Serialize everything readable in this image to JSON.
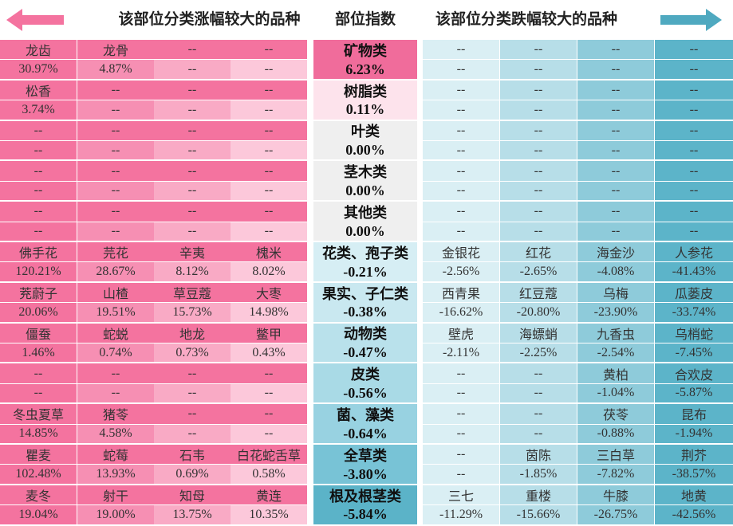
{
  "header": {
    "gainers_title": "该部位分类涨幅较大的品种",
    "index_title": "部位指数",
    "losers_title": "该部位分类跌幅较大的品种"
  },
  "rows": [
    {
      "category": "矿物类",
      "index": "6.23%",
      "gainers": [
        {
          "name": "龙齿",
          "value": "30.97%"
        },
        {
          "name": "龙骨",
          "value": "4.87%"
        },
        {
          "name": "--",
          "value": "--"
        },
        {
          "name": "--",
          "value": "--"
        }
      ],
      "losers": [
        {
          "name": "--",
          "value": "--"
        },
        {
          "name": "--",
          "value": "--"
        },
        {
          "name": "--",
          "value": "--"
        },
        {
          "name": "--",
          "value": "--"
        }
      ]
    },
    {
      "category": "树脂类",
      "index": "0.11%",
      "gainers": [
        {
          "name": "松香",
          "value": "3.74%"
        },
        {
          "name": "--",
          "value": "--"
        },
        {
          "name": "--",
          "value": "--"
        },
        {
          "name": "--",
          "value": "--"
        }
      ],
      "losers": [
        {
          "name": "--",
          "value": "--"
        },
        {
          "name": "--",
          "value": "--"
        },
        {
          "name": "--",
          "value": "--"
        },
        {
          "name": "--",
          "value": "--"
        }
      ]
    },
    {
      "category": "叶类",
      "index": "0.00%",
      "gainers": [
        {
          "name": "--",
          "value": "--"
        },
        {
          "name": "--",
          "value": "--"
        },
        {
          "name": "--",
          "value": "--"
        },
        {
          "name": "--",
          "value": "--"
        }
      ],
      "losers": [
        {
          "name": "--",
          "value": "--"
        },
        {
          "name": "--",
          "value": "--"
        },
        {
          "name": "--",
          "value": "--"
        },
        {
          "name": "--",
          "value": "--"
        }
      ]
    },
    {
      "category": "茎木类",
      "index": "0.00%",
      "gainers": [
        {
          "name": "--",
          "value": "--"
        },
        {
          "name": "--",
          "value": "--"
        },
        {
          "name": "--",
          "value": "--"
        },
        {
          "name": "--",
          "value": "--"
        }
      ],
      "losers": [
        {
          "name": "--",
          "value": "--"
        },
        {
          "name": "--",
          "value": "--"
        },
        {
          "name": "--",
          "value": "--"
        },
        {
          "name": "--",
          "value": "--"
        }
      ]
    },
    {
      "category": "其他类",
      "index": "0.00%",
      "gainers": [
        {
          "name": "--",
          "value": "--"
        },
        {
          "name": "--",
          "value": "--"
        },
        {
          "name": "--",
          "value": "--"
        },
        {
          "name": "--",
          "value": "--"
        }
      ],
      "losers": [
        {
          "name": "--",
          "value": "--"
        },
        {
          "name": "--",
          "value": "--"
        },
        {
          "name": "--",
          "value": "--"
        },
        {
          "name": "--",
          "value": "--"
        }
      ]
    },
    {
      "category": "花类、孢子类",
      "index": "-0.21%",
      "gainers": [
        {
          "name": "佛手花",
          "value": "120.21%"
        },
        {
          "name": "芫花",
          "value": "28.67%"
        },
        {
          "name": "辛夷",
          "value": "8.12%"
        },
        {
          "name": "槐米",
          "value": "8.02%"
        }
      ],
      "losers": [
        {
          "name": "金银花",
          "value": "-2.56%"
        },
        {
          "name": "红花",
          "value": "-2.65%"
        },
        {
          "name": "海金沙",
          "value": "-4.08%"
        },
        {
          "name": "人参花",
          "value": "-41.43%"
        }
      ]
    },
    {
      "category": "果实、子仁类",
      "index": "-0.38%",
      "gainers": [
        {
          "name": "茺蔚子",
          "value": "20.06%"
        },
        {
          "name": "山楂",
          "value": "19.51%"
        },
        {
          "name": "草豆蔻",
          "value": "15.73%"
        },
        {
          "name": "大枣",
          "value": "14.98%"
        }
      ],
      "losers": [
        {
          "name": "西青果",
          "value": "-16.62%"
        },
        {
          "name": "红豆蔻",
          "value": "-20.80%"
        },
        {
          "name": "乌梅",
          "value": "-23.90%"
        },
        {
          "name": "瓜蒌皮",
          "value": "-33.74%"
        }
      ]
    },
    {
      "category": "动物类",
      "index": "-0.47%",
      "gainers": [
        {
          "name": "僵蚕",
          "value": "1.46%"
        },
        {
          "name": "蛇蜕",
          "value": "0.74%"
        },
        {
          "name": "地龙",
          "value": "0.73%"
        },
        {
          "name": "鳖甲",
          "value": "0.43%"
        }
      ],
      "losers": [
        {
          "name": "壁虎",
          "value": "-2.11%"
        },
        {
          "name": "海螵蛸",
          "value": "-2.25%"
        },
        {
          "name": "九香虫",
          "value": "-2.54%"
        },
        {
          "name": "乌梢蛇",
          "value": "-7.45%"
        }
      ]
    },
    {
      "category": "皮类",
      "index": "-0.56%",
      "gainers": [
        {
          "name": "--",
          "value": "--"
        },
        {
          "name": "--",
          "value": "--"
        },
        {
          "name": "--",
          "value": "--"
        },
        {
          "name": "--",
          "value": "--"
        }
      ],
      "losers": [
        {
          "name": "--",
          "value": "--"
        },
        {
          "name": "--",
          "value": "--"
        },
        {
          "name": "黄柏",
          "value": "-1.04%"
        },
        {
          "name": "合欢皮",
          "value": "-5.87%"
        }
      ]
    },
    {
      "category": "菌、藻类",
      "index": "-0.64%",
      "gainers": [
        {
          "name": "冬虫夏草",
          "value": "14.85%"
        },
        {
          "name": "猪苓",
          "value": "4.58%"
        },
        {
          "name": "--",
          "value": "--"
        },
        {
          "name": "--",
          "value": "--"
        }
      ],
      "losers": [
        {
          "name": "--",
          "value": "--"
        },
        {
          "name": "--",
          "value": "--"
        },
        {
          "name": "茯苓",
          "value": "-0.88%"
        },
        {
          "name": "昆布",
          "value": "-1.94%"
        }
      ]
    },
    {
      "category": "全草类",
      "index": "-3.80%",
      "gainers": [
        {
          "name": "瞿麦",
          "value": "102.48%"
        },
        {
          "name": "蛇莓",
          "value": "13.93%"
        },
        {
          "name": "石韦",
          "value": "0.69%"
        },
        {
          "name": "白花蛇舌草",
          "value": "0.58%"
        }
      ],
      "losers": [
        {
          "name": "--",
          "value": "--"
        },
        {
          "name": "茵陈",
          "value": "-1.85%"
        },
        {
          "name": "三白草",
          "value": "-7.82%"
        },
        {
          "name": "荆芥",
          "value": "-38.57%"
        }
      ]
    },
    {
      "category": "根及根茎类",
      "index": "-5.84%",
      "gainers": [
        {
          "name": "麦冬",
          "value": "19.04%"
        },
        {
          "name": "射干",
          "value": "19.00%"
        },
        {
          "name": "知母",
          "value": "13.75%"
        },
        {
          "name": "黄连",
          "value": "10.35%"
        }
      ],
      "losers": [
        {
          "name": "三七",
          "value": "-11.29%"
        },
        {
          "name": "重楼",
          "value": "-15.66%"
        },
        {
          "name": "牛膝",
          "value": "-26.75%"
        },
        {
          "name": "地黄",
          "value": "-42.56%"
        }
      ]
    }
  ]
}
